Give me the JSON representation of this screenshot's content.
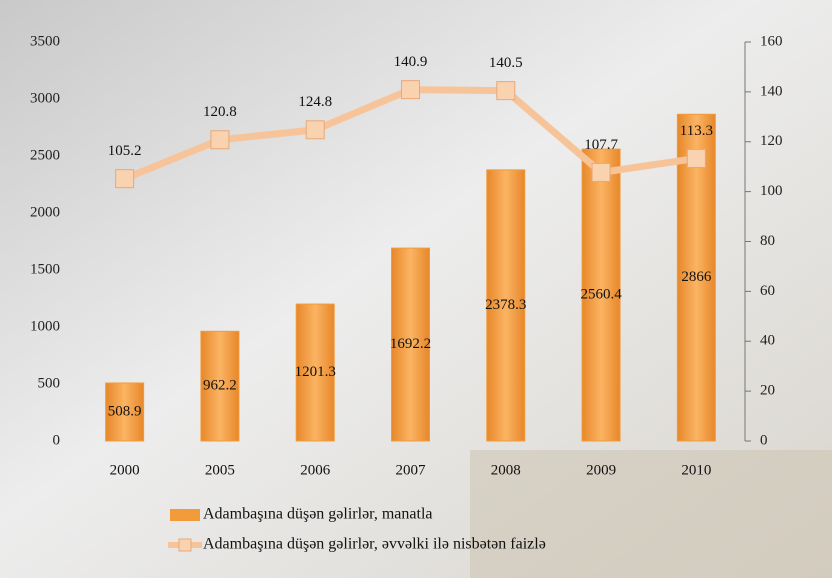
{
  "chart_data": {
    "type": "bar_line",
    "categories": [
      "2000",
      "2005",
      "2006",
      "2007",
      "2008",
      "2009",
      "2010"
    ],
    "series": [
      {
        "name": "Adambaşına düşən gəlirlər, manatla",
        "type": "bar",
        "color": "#f29b3a",
        "values": [
          508.9,
          962.2,
          1201.3,
          1692.2,
          2378.3,
          2560.4,
          2866
        ]
      },
      {
        "name": "Adambaşına düşən gəlirlər, əvvəlki ilə nisbətən faizlə",
        "type": "line",
        "axis": "y2",
        "color": "#f7c49a",
        "values": [
          105.2,
          120.8,
          124.8,
          140.9,
          140.5,
          107.7,
          113.3
        ]
      }
    ],
    "ylim": [
      0,
      3500
    ],
    "yticks": [
      0,
      500,
      1000,
      1500,
      2000,
      2500,
      3000,
      3500
    ],
    "y2lim": [
      0,
      160
    ],
    "y2ticks": [
      0,
      20,
      40,
      60,
      80,
      100,
      120,
      140,
      160
    ],
    "grid": false
  }
}
